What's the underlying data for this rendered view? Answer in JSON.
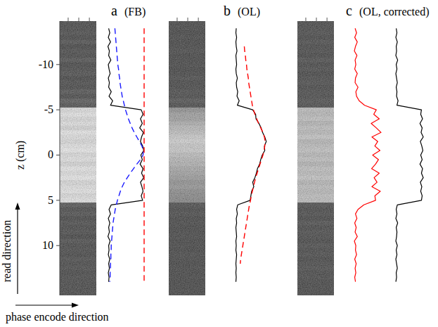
{
  "chart_data": [
    {
      "type": "line",
      "orientation": "horizontal",
      "title": "a",
      "subtitle": "(FB)",
      "x_label": "z (cm)",
      "annotations": [
        "read direction",
        "phase encode direction"
      ],
      "xlim": [
        -14.8,
        15.5
      ],
      "xticks": [
        -10,
        -5,
        0,
        5,
        10
      ],
      "tick_labels": "x",
      "ylim": [
        0,
        1
      ],
      "x": [
        -14,
        -13.5,
        -13,
        -12.5,
        -12,
        -11.5,
        -11,
        -10.5,
        -10,
        -9.5,
        -9,
        -8.5,
        -8,
        -7.5,
        -7,
        -6.5,
        -6,
        -5.5,
        -5,
        -4.5,
        -4,
        -3.5,
        -3,
        -2.5,
        -2,
        -1.5,
        -1,
        -0.5,
        0,
        0.5,
        1,
        1.5,
        2,
        2.5,
        3,
        3.5,
        4,
        4.5,
        5,
        5.5,
        6,
        6.5,
        7,
        7.5,
        8,
        8.5,
        9,
        9.5,
        10,
        10.5,
        11,
        11.5,
        12,
        12.5,
        13,
        13.5,
        14
      ],
      "series": [
        {
          "color": "#000000",
          "line_style": "solid",
          "values": [
            0.03,
            0.06,
            0.02,
            0.08,
            0.01,
            0.05,
            0.03,
            0.09,
            0.02,
            0.04,
            0.07,
            0.02,
            0.05,
            0.03,
            0.1,
            0.04,
            0.14,
            0.08,
            0.92,
            0.97,
            0.9,
            0.95,
            0.88,
            0.98,
            0.93,
            0.9,
            0.96,
            0.99,
            0.91,
            0.95,
            0.89,
            0.97,
            0.93,
            0.99,
            0.9,
            0.94,
            0.97,
            0.92,
            0.96,
            0.1,
            0.04,
            0.08,
            0.02,
            0.06,
            0.03,
            0.05,
            0.01,
            0.07,
            0.03,
            0.04,
            0.02,
            0.06,
            0.03,
            0.05,
            0.02,
            0.04,
            0.03
          ]
        },
        {
          "color": "#1a1aff",
          "line_style": "dashed",
          "values": [
            0.2,
            0.21,
            0.22,
            0.23,
            0.24,
            0.25,
            0.26,
            0.27,
            0.28,
            0.3,
            0.31,
            0.33,
            0.34,
            0.36,
            0.38,
            0.4,
            0.43,
            0.46,
            0.49,
            0.53,
            0.57,
            0.62,
            0.67,
            0.73,
            0.8,
            0.87,
            0.94,
            0.98,
            0.97,
            0.9,
            0.8,
            0.71,
            0.62,
            0.54,
            0.46,
            0.4,
            0.35,
            0.31,
            0.27,
            0.24,
            0.21,
            0.19,
            0.17,
            0.15,
            0.14,
            0.13,
            0.12,
            0.11,
            0.1,
            0.1,
            0.09,
            0.09,
            0.08,
            0.08,
            0.07,
            0.07,
            0.06
          ]
        },
        {
          "color": "#ff0000",
          "line_style": "dashed",
          "values": [
            1,
            1,
            1,
            1,
            1,
            1,
            1,
            1,
            1,
            1,
            1,
            1,
            1,
            1,
            1,
            1,
            1,
            1,
            1,
            1,
            1,
            1,
            1,
            1,
            1,
            1,
            1,
            1,
            1,
            1,
            1,
            1,
            1,
            1,
            1,
            1,
            1,
            1,
            1,
            1,
            1,
            1,
            1,
            1,
            1,
            1,
            1,
            1,
            1,
            1,
            1,
            1,
            1,
            1,
            1,
            1,
            1
          ]
        }
      ]
    },
    {
      "type": "line",
      "orientation": "horizontal",
      "title": "b",
      "subtitle": "(OL)",
      "xlim": [
        -14.8,
        15.5
      ],
      "tick_labels": false,
      "ylim": [
        0,
        1
      ],
      "x": [
        -14,
        -13.5,
        -13,
        -12.5,
        -12,
        -11.5,
        -11,
        -10.5,
        -10,
        -9.5,
        -9,
        -8.5,
        -8,
        -7.5,
        -7,
        -6.5,
        -6,
        -5.5,
        -5,
        -4.5,
        -4,
        -3.5,
        -3,
        -2.5,
        -2,
        -1.5,
        -1,
        -0.5,
        0,
        0.5,
        1,
        1.5,
        2,
        2.5,
        3,
        3.5,
        4,
        4.5,
        5,
        5.5,
        6,
        6.5,
        7,
        7.5,
        8,
        8.5,
        9,
        9.5,
        10,
        10.5,
        11,
        11.5,
        12,
        12.5,
        13,
        13.5,
        14
      ],
      "series": [
        {
          "color": "#000000",
          "line_style": "solid",
          "values": [
            0.02,
            0.01,
            0.03,
            0.01,
            0.02,
            0.04,
            0.01,
            0.02,
            0.03,
            0.01,
            0.02,
            0.05,
            0.02,
            0.03,
            0.06,
            0.04,
            0.1,
            0.05,
            0.47,
            0.55,
            0.56,
            0.64,
            0.7,
            0.74,
            0.8,
            0.84,
            0.79,
            0.8,
            0.73,
            0.69,
            0.66,
            0.6,
            0.57,
            0.53,
            0.47,
            0.5,
            0.44,
            0.42,
            0.4,
            0.06,
            0.03,
            0.05,
            0.02,
            0.03,
            0.01,
            0.02,
            0.03,
            0.01,
            0.02,
            0.01,
            0.03,
            0.02,
            0.01,
            0.02,
            0.01,
            0.02,
            0.01
          ]
        },
        {
          "color": "#ff0000",
          "line_style": "dashed",
          "values": [
            null,
            null,
            null,
            null,
            0.24,
            0.25,
            0.27,
            0.28,
            0.3,
            0.31,
            0.33,
            0.35,
            0.36,
            0.38,
            0.4,
            0.42,
            0.44,
            0.46,
            0.49,
            0.53,
            0.58,
            0.63,
            0.69,
            0.75,
            0.79,
            0.81,
            0.8,
            0.78,
            0.75,
            0.71,
            0.67,
            0.63,
            0.59,
            0.55,
            0.52,
            0.49,
            0.46,
            0.43,
            0.41,
            0.38,
            0.36,
            0.34,
            0.32,
            0.3,
            0.28,
            0.26,
            0.24,
            0.22,
            0.2,
            0.18,
            0.16,
            0.14,
            0.13,
            null,
            null,
            null,
            null
          ]
        }
      ]
    },
    {
      "type": "line",
      "orientation": "horizontal",
      "title": "c",
      "subtitle": "(OL, corrected)",
      "xlim": [
        -14.8,
        15.5
      ],
      "tick_labels": false,
      "ylim": [
        0,
        1
      ],
      "y2lim": [
        0,
        1
      ],
      "x": [
        -14,
        -13.5,
        -13,
        -12.5,
        -12,
        -11.5,
        -11,
        -10.5,
        -10,
        -9.5,
        -9,
        -8.5,
        -8,
        -7.5,
        -7,
        -6.5,
        -6,
        -5.5,
        -5,
        -4.5,
        -4,
        -3.5,
        -3,
        -2.5,
        -2,
        -1.5,
        -1,
        -0.5,
        0,
        0.5,
        1,
        1.5,
        2,
        2.5,
        3,
        3.5,
        4,
        4.5,
        5,
        5.5,
        6,
        6.5,
        7,
        7.5,
        8,
        8.5,
        9,
        9.5,
        10,
        10.5,
        11,
        11.5,
        12,
        12.5,
        13,
        13.5,
        14
      ],
      "series": [
        {
          "color": "#000000",
          "line_style": "solid",
          "axis": "y2",
          "values": [
            0.03,
            0.05,
            0.02,
            0.06,
            0.03,
            0.04,
            0.02,
            0.07,
            0.03,
            0.05,
            0.02,
            0.04,
            0.06,
            0.03,
            0.05,
            0.04,
            0.08,
            0.05,
            0.72,
            0.7,
            0.75,
            0.68,
            0.74,
            0.71,
            0.77,
            0.69,
            0.73,
            0.76,
            0.7,
            0.74,
            0.68,
            0.75,
            0.72,
            0.77,
            0.69,
            0.73,
            0.7,
            0.74,
            0.72,
            0.06,
            0.03,
            0.05,
            0.02,
            0.07,
            0.03,
            0.05,
            0.04,
            0.02,
            0.06,
            0.03,
            0.05,
            0.02,
            0.04,
            0.06,
            0.03,
            0.04,
            0.02
          ]
        },
        {
          "color": "#ff0000",
          "line_style": "solid",
          "values": [
            0.04,
            0.08,
            0.03,
            0.1,
            0.05,
            0.02,
            0.09,
            0.04,
            0.06,
            0.03,
            0.1,
            0.05,
            0.04,
            0.12,
            0.06,
            0.08,
            0.15,
            0.3,
            0.62,
            0.55,
            0.7,
            0.48,
            0.62,
            0.75,
            0.5,
            0.66,
            0.58,
            0.72,
            0.52,
            0.68,
            0.6,
            0.49,
            0.7,
            0.56,
            0.64,
            0.5,
            0.73,
            0.58,
            0.6,
            0.28,
            0.12,
            0.05,
            0.09,
            0.03,
            0.07,
            0.04,
            0.1,
            0.02,
            0.06,
            0.05,
            0.08,
            0.03,
            0.07,
            0.04,
            0.06,
            0.03,
            0.05
          ]
        }
      ]
    }
  ]
}
